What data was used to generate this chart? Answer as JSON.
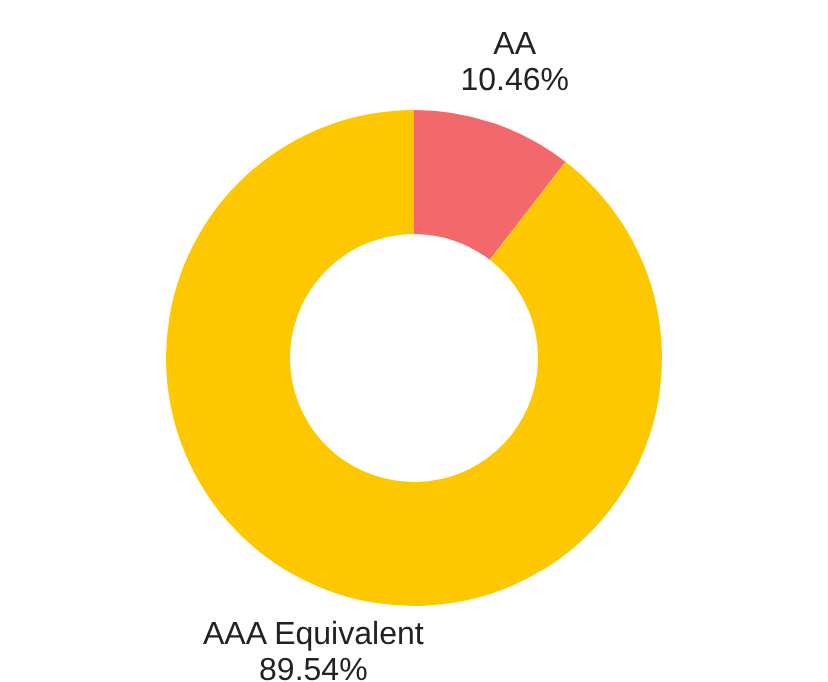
{
  "chart_data": {
    "type": "donut",
    "categories": [
      "AA",
      "AAA Equivalent"
    ],
    "values": [
      10.46,
      89.54
    ],
    "value_labels": [
      "10.46%",
      "89.54%"
    ],
    "colors": [
      "#f2686b",
      "#fdc800"
    ],
    "legend": false
  }
}
